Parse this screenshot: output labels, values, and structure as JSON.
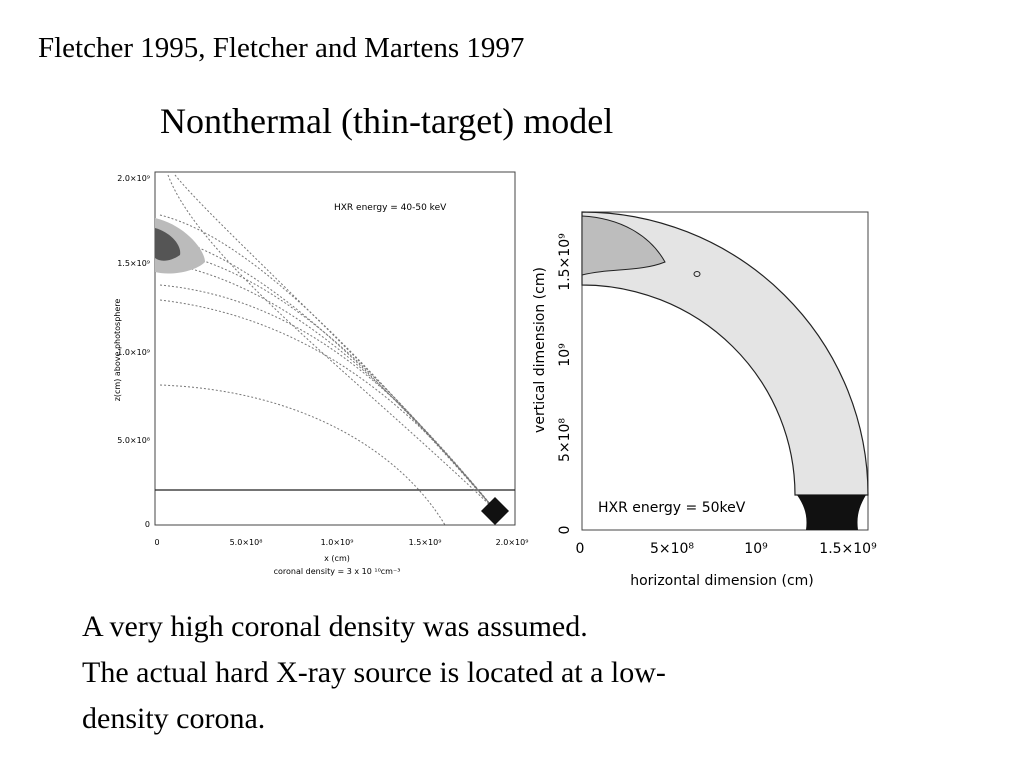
{
  "header": {
    "citation": "Fletcher 1995, Fletcher and Martens 1997",
    "title": "Nonthermal (thin-target) model"
  },
  "figure_left": {
    "annotation": "HXR energy = 40-50 keV",
    "y_label": "z(cm) above photosphere",
    "x_label": "x (cm)",
    "footnote": "coronal density = 3 x 10 ¹⁰cm⁻³",
    "y_ticks": [
      "2.0×10⁹",
      "1.5×10⁹",
      "1.0×10⁹",
      "5.0×10⁸",
      "0"
    ],
    "x_ticks": [
      "0",
      "5.0×10⁸",
      "1.0×10⁹",
      "1.5×10⁹",
      "2.0×10⁹"
    ]
  },
  "figure_right": {
    "annotation": "HXR energy = 50keV",
    "y_label": "vertical dimension (cm)",
    "x_label": "horizontal dimension (cm)",
    "y_ticks": [
      "0",
      "5×10⁸",
      "10⁹",
      "1.5×10⁹"
    ],
    "x_ticks": [
      "0",
      "5×10⁸",
      "10⁹",
      "1.5×10⁹"
    ]
  },
  "body": {
    "lines": [
      "A very high coronal density was assumed.",
      "The actual hard X-ray source is located at a low-",
      "density corona."
    ]
  }
}
